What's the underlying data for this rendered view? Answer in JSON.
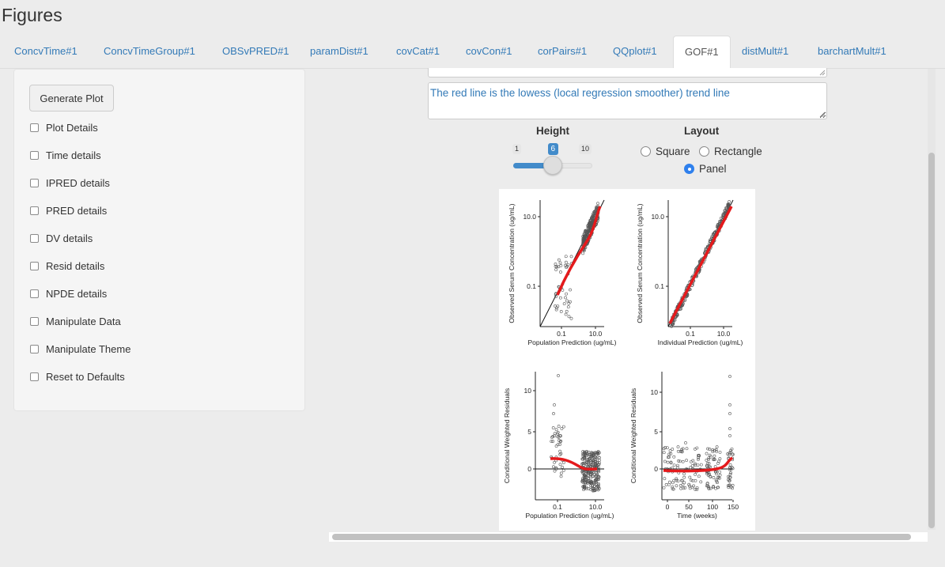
{
  "page": {
    "title": "Figures"
  },
  "tabs": [
    {
      "label": "ConcvTime#1",
      "active": false
    },
    {
      "label": "ConcvTimeGroup#1",
      "active": false
    },
    {
      "label": "OBSvPRED#1",
      "active": false
    },
    {
      "label": "paramDist#1",
      "active": false
    },
    {
      "label": "covCat#1",
      "active": false
    },
    {
      "label": "covCon#1",
      "active": false
    },
    {
      "label": "corPairs#1",
      "active": false
    },
    {
      "label": "QQplot#1",
      "active": false
    },
    {
      "label": "GOF#1",
      "active": true
    },
    {
      "label": "distMult#1",
      "active": false
    },
    {
      "label": "barchartMult#1",
      "active": false
    }
  ],
  "sidebar": {
    "generate_label": "Generate Plot",
    "options": [
      {
        "label": "Plot Details",
        "checked": false
      },
      {
        "label": "Time details",
        "checked": false
      },
      {
        "label": "IPRED details",
        "checked": false
      },
      {
        "label": "PRED details",
        "checked": false
      },
      {
        "label": "DV details",
        "checked": false
      },
      {
        "label": "Resid details",
        "checked": false
      },
      {
        "label": "NPDE details",
        "checked": false
      },
      {
        "label": "Manipulate Data",
        "checked": false
      },
      {
        "label": "Manipulate Theme",
        "checked": false
      },
      {
        "label": "Reset to Defaults",
        "checked": false
      }
    ]
  },
  "main": {
    "caption_text": "The red line is the lowess (local regression smoother) trend line",
    "height_control": {
      "label": "Height",
      "min_label": "1",
      "max_label": "10",
      "min": 1,
      "max": 10,
      "value": 6,
      "value_label": "6"
    },
    "layout_control": {
      "label": "Layout",
      "options": [
        {
          "label": "Square",
          "checked": false
        },
        {
          "label": "Rectangle",
          "checked": false
        },
        {
          "label": "Panel",
          "checked": true
        }
      ]
    }
  },
  "gof_figure": {
    "panels": [
      {
        "ylabel": "Observed Serum Concentration (ug/mL)",
        "xlabel": "Population Prediction (ug/mL)",
        "yticks": [
          "10.0",
          "0.1"
        ],
        "xticks": [
          "0.1",
          "10.0"
        ]
      },
      {
        "ylabel": "Observed Serum Concentration (ug/mL)",
        "xlabel": "Individual Prediction (ug/mL)",
        "yticks": [
          "10.0",
          "0.1"
        ],
        "xticks": [
          "0.1",
          "10.0"
        ]
      },
      {
        "ylabel": "Conditional Weighted Residuals",
        "xlabel": "Population Prediction (ug/mL)",
        "yticks": [
          "10",
          "5",
          "0"
        ],
        "xticks": [
          "0.1",
          "10.0"
        ]
      },
      {
        "ylabel": "Conditional Weighted Residuals",
        "xlabel": "Time (weeks)",
        "yticks": [
          "10",
          "5",
          "0"
        ],
        "xticks": [
          "0",
          "50",
          "100",
          "150"
        ]
      }
    ],
    "trend_color": "#e41a1c",
    "point_color": "#555555"
  }
}
